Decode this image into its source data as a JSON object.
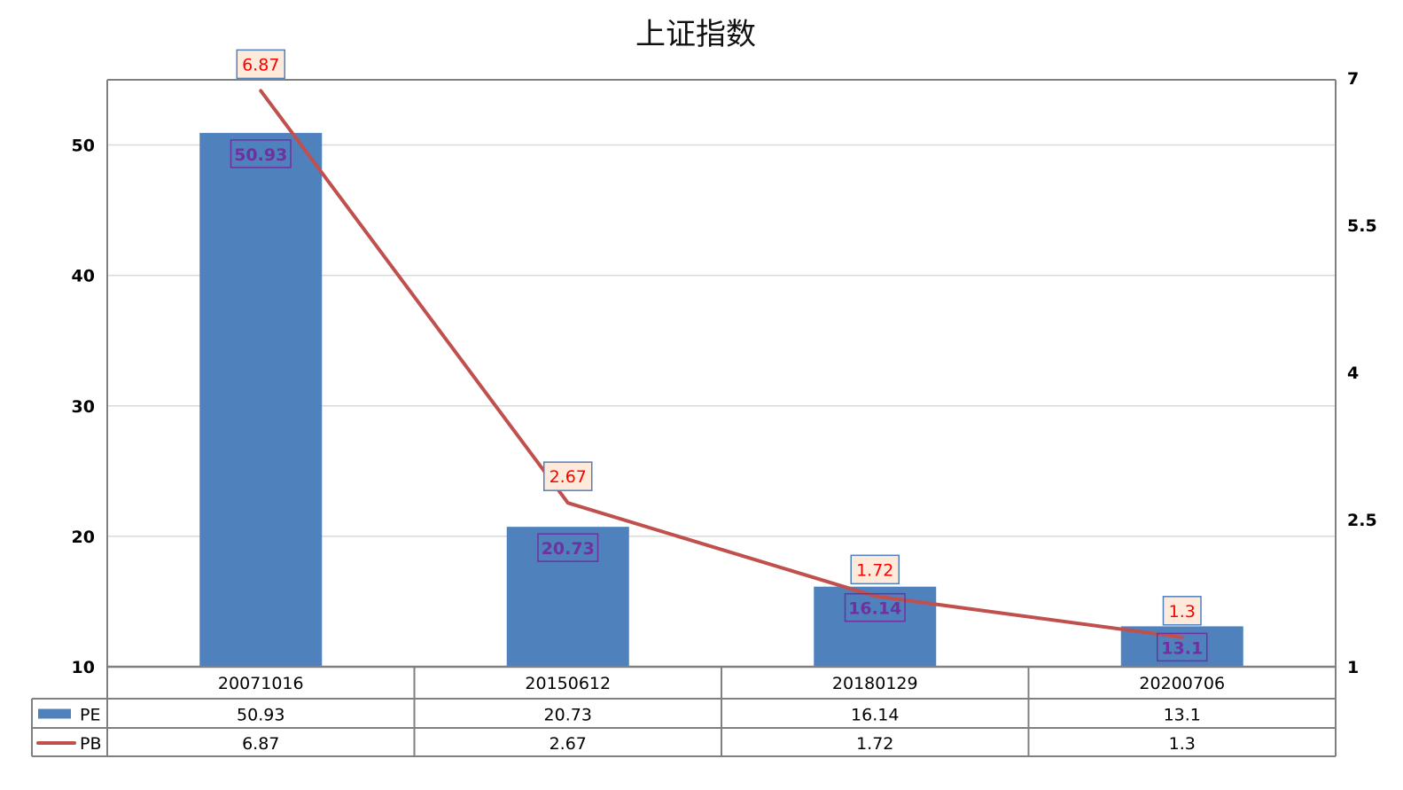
{
  "chart_data": {
    "type": "bar",
    "title": "上证指数",
    "categories": [
      "20071016",
      "20150612",
      "20180129",
      "20200706"
    ],
    "series": [
      {
        "name": "PE",
        "type": "bar",
        "axis": "left",
        "color": "#4f81bd",
        "values": [
          50.93,
          20.73,
          16.14,
          13.1
        ]
      },
      {
        "name": "PB",
        "type": "line",
        "axis": "right",
        "color": "#c0504d",
        "values": [
          6.87,
          2.67,
          1.72,
          1.3
        ]
      }
    ],
    "left_axis": {
      "ylim": [
        10,
        55
      ],
      "ticks": [
        "10",
        "20",
        "30",
        "40",
        "50"
      ]
    },
    "right_axis": {
      "ylim": [
        1,
        7
      ],
      "ticks": [
        "1",
        "2.5",
        "4",
        "5.5",
        "7"
      ]
    },
    "grid": true,
    "legend": "data-table",
    "data_label_colors": {
      "PE": "#7030a0",
      "PB": "#ff0000",
      "PB_fill": "#fdeada"
    }
  }
}
